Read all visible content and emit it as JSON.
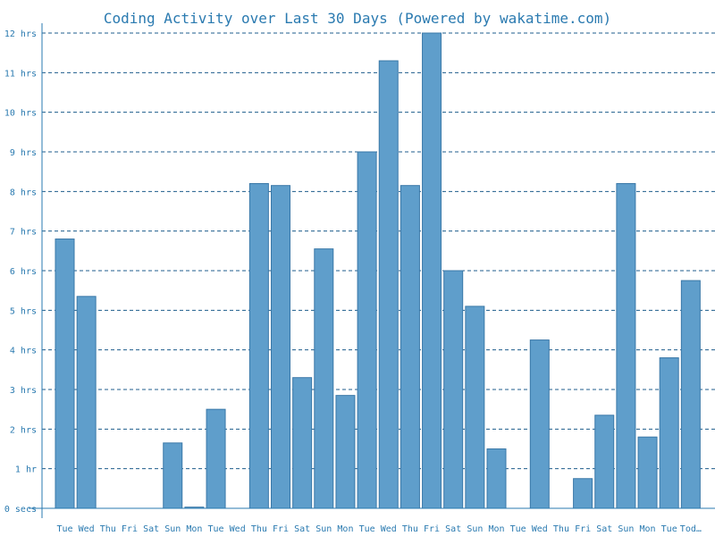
{
  "chart_data": {
    "type": "bar",
    "title": "Coding Activity over Last 30 Days (Powered by wakatime.com)",
    "xlabel": "",
    "ylabel": "",
    "unit": "hrs",
    "ylim": [
      0,
      12
    ],
    "grid": true,
    "y_ticks": [
      {
        "value": 0,
        "label": "0 secs"
      },
      {
        "value": 1,
        "label": "1 hr"
      },
      {
        "value": 2,
        "label": "2 hrs"
      },
      {
        "value": 3,
        "label": "3 hrs"
      },
      {
        "value": 4,
        "label": "4 hrs"
      },
      {
        "value": 5,
        "label": "5 hrs"
      },
      {
        "value": 6,
        "label": "6 hrs"
      },
      {
        "value": 7,
        "label": "7 hrs"
      },
      {
        "value": 8,
        "label": "8 hrs"
      },
      {
        "value": 9,
        "label": "9 hrs"
      },
      {
        "value": 10,
        "label": "10 hrs"
      },
      {
        "value": 11,
        "label": "11 hrs"
      },
      {
        "value": 12,
        "label": "12 hrs"
      }
    ],
    "categories": [
      "Tue",
      "Wed",
      "Thu",
      "Fri",
      "Sat",
      "Sun",
      "Mon",
      "Tue",
      "Wed",
      "Thu",
      "Fri",
      "Sat",
      "Sun",
      "Mon",
      "Tue",
      "Wed",
      "Thu",
      "Fri",
      "Sat",
      "Sun",
      "Mon",
      "Tue",
      "Wed",
      "Thu",
      "Fri",
      "Sat",
      "Sun",
      "Mon",
      "Tue",
      "Tod…"
    ],
    "values": [
      6.8,
      5.35,
      0,
      0,
      0,
      1.65,
      0.03,
      2.5,
      0,
      8.2,
      8.15,
      3.3,
      6.55,
      2.85,
      9.0,
      11.3,
      8.15,
      12.0,
      6.0,
      5.1,
      1.5,
      0,
      4.25,
      0,
      0.75,
      2.35,
      8.2,
      1.8,
      3.8,
      5.75
    ],
    "colors": {
      "bar_fill": "#5f9ecb",
      "bar_stroke": "#3a78a8",
      "text": "#2a7ab0",
      "grid": "#1f5d8c"
    }
  }
}
